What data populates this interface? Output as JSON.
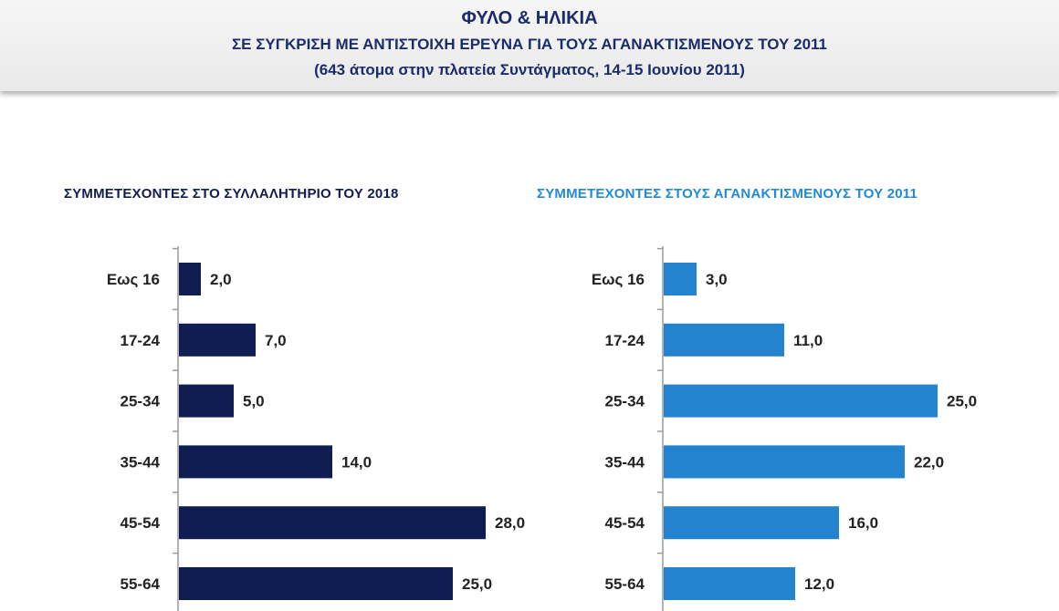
{
  "header": {
    "title": "ΦΥΛΟ & ΗΛΙΚΙΑ",
    "subtitle": "ΣΕ ΣΥΓΚΡΙΣΗ ΜΕ ΑΝΤΙΣΤΟΙΧΗ ΕΡΕΥΝΑ ΓΙΑ ΤΟΥΣ ΑΓΑΝΑΚΤΙΣΜΕΝΟΥΣ ΤΟΥ 2011",
    "note": "(643 άτομα στην πλατεία Συντάγματος, 14-15 Ιουνίου 2011)"
  },
  "colors": {
    "header_text": "#1a2c6b",
    "left_bars": "#0f1d52",
    "right_bars": "#2483cf"
  },
  "chart_data": [
    {
      "type": "bar",
      "orientation": "horizontal",
      "title": "ΣΥΜΜΕΤΕΧΟΝΤΕΣ ΣΤΟ ΣΥΛΛΑΛΗΤΗΡΙΟ ΤΟΥ 2018",
      "categories": [
        "Εως 16",
        "17-24",
        "25-34",
        "35-44",
        "45-54",
        "55-64"
      ],
      "values": [
        2.0,
        7.0,
        5.0,
        14.0,
        28.0,
        25.0
      ],
      "value_labels": [
        "2,0",
        "7,0",
        "5,0",
        "14,0",
        "28,0",
        "25,0"
      ],
      "xlim": [
        0,
        30
      ],
      "grid": false,
      "color": "#0f1d52"
    },
    {
      "type": "bar",
      "orientation": "horizontal",
      "title": "ΣΥΜΜΕΤΕΧΟΝΤΕΣ ΣΤΟΥΣ ΑΓΑΝΑΚΤΙΣΜΕΝΟΥΣ ΤΟΥ 2011",
      "categories": [
        "Εως 16",
        "17-24",
        "25-34",
        "35-44",
        "45-54",
        "55-64"
      ],
      "values": [
        3.0,
        11.0,
        25.0,
        22.0,
        16.0,
        12.0
      ],
      "value_labels": [
        "3,0",
        "11,0",
        "25,0",
        "22,0",
        "16,0",
        "12,0"
      ],
      "xlim": [
        0,
        30
      ],
      "grid": false,
      "color": "#2483cf"
    }
  ]
}
